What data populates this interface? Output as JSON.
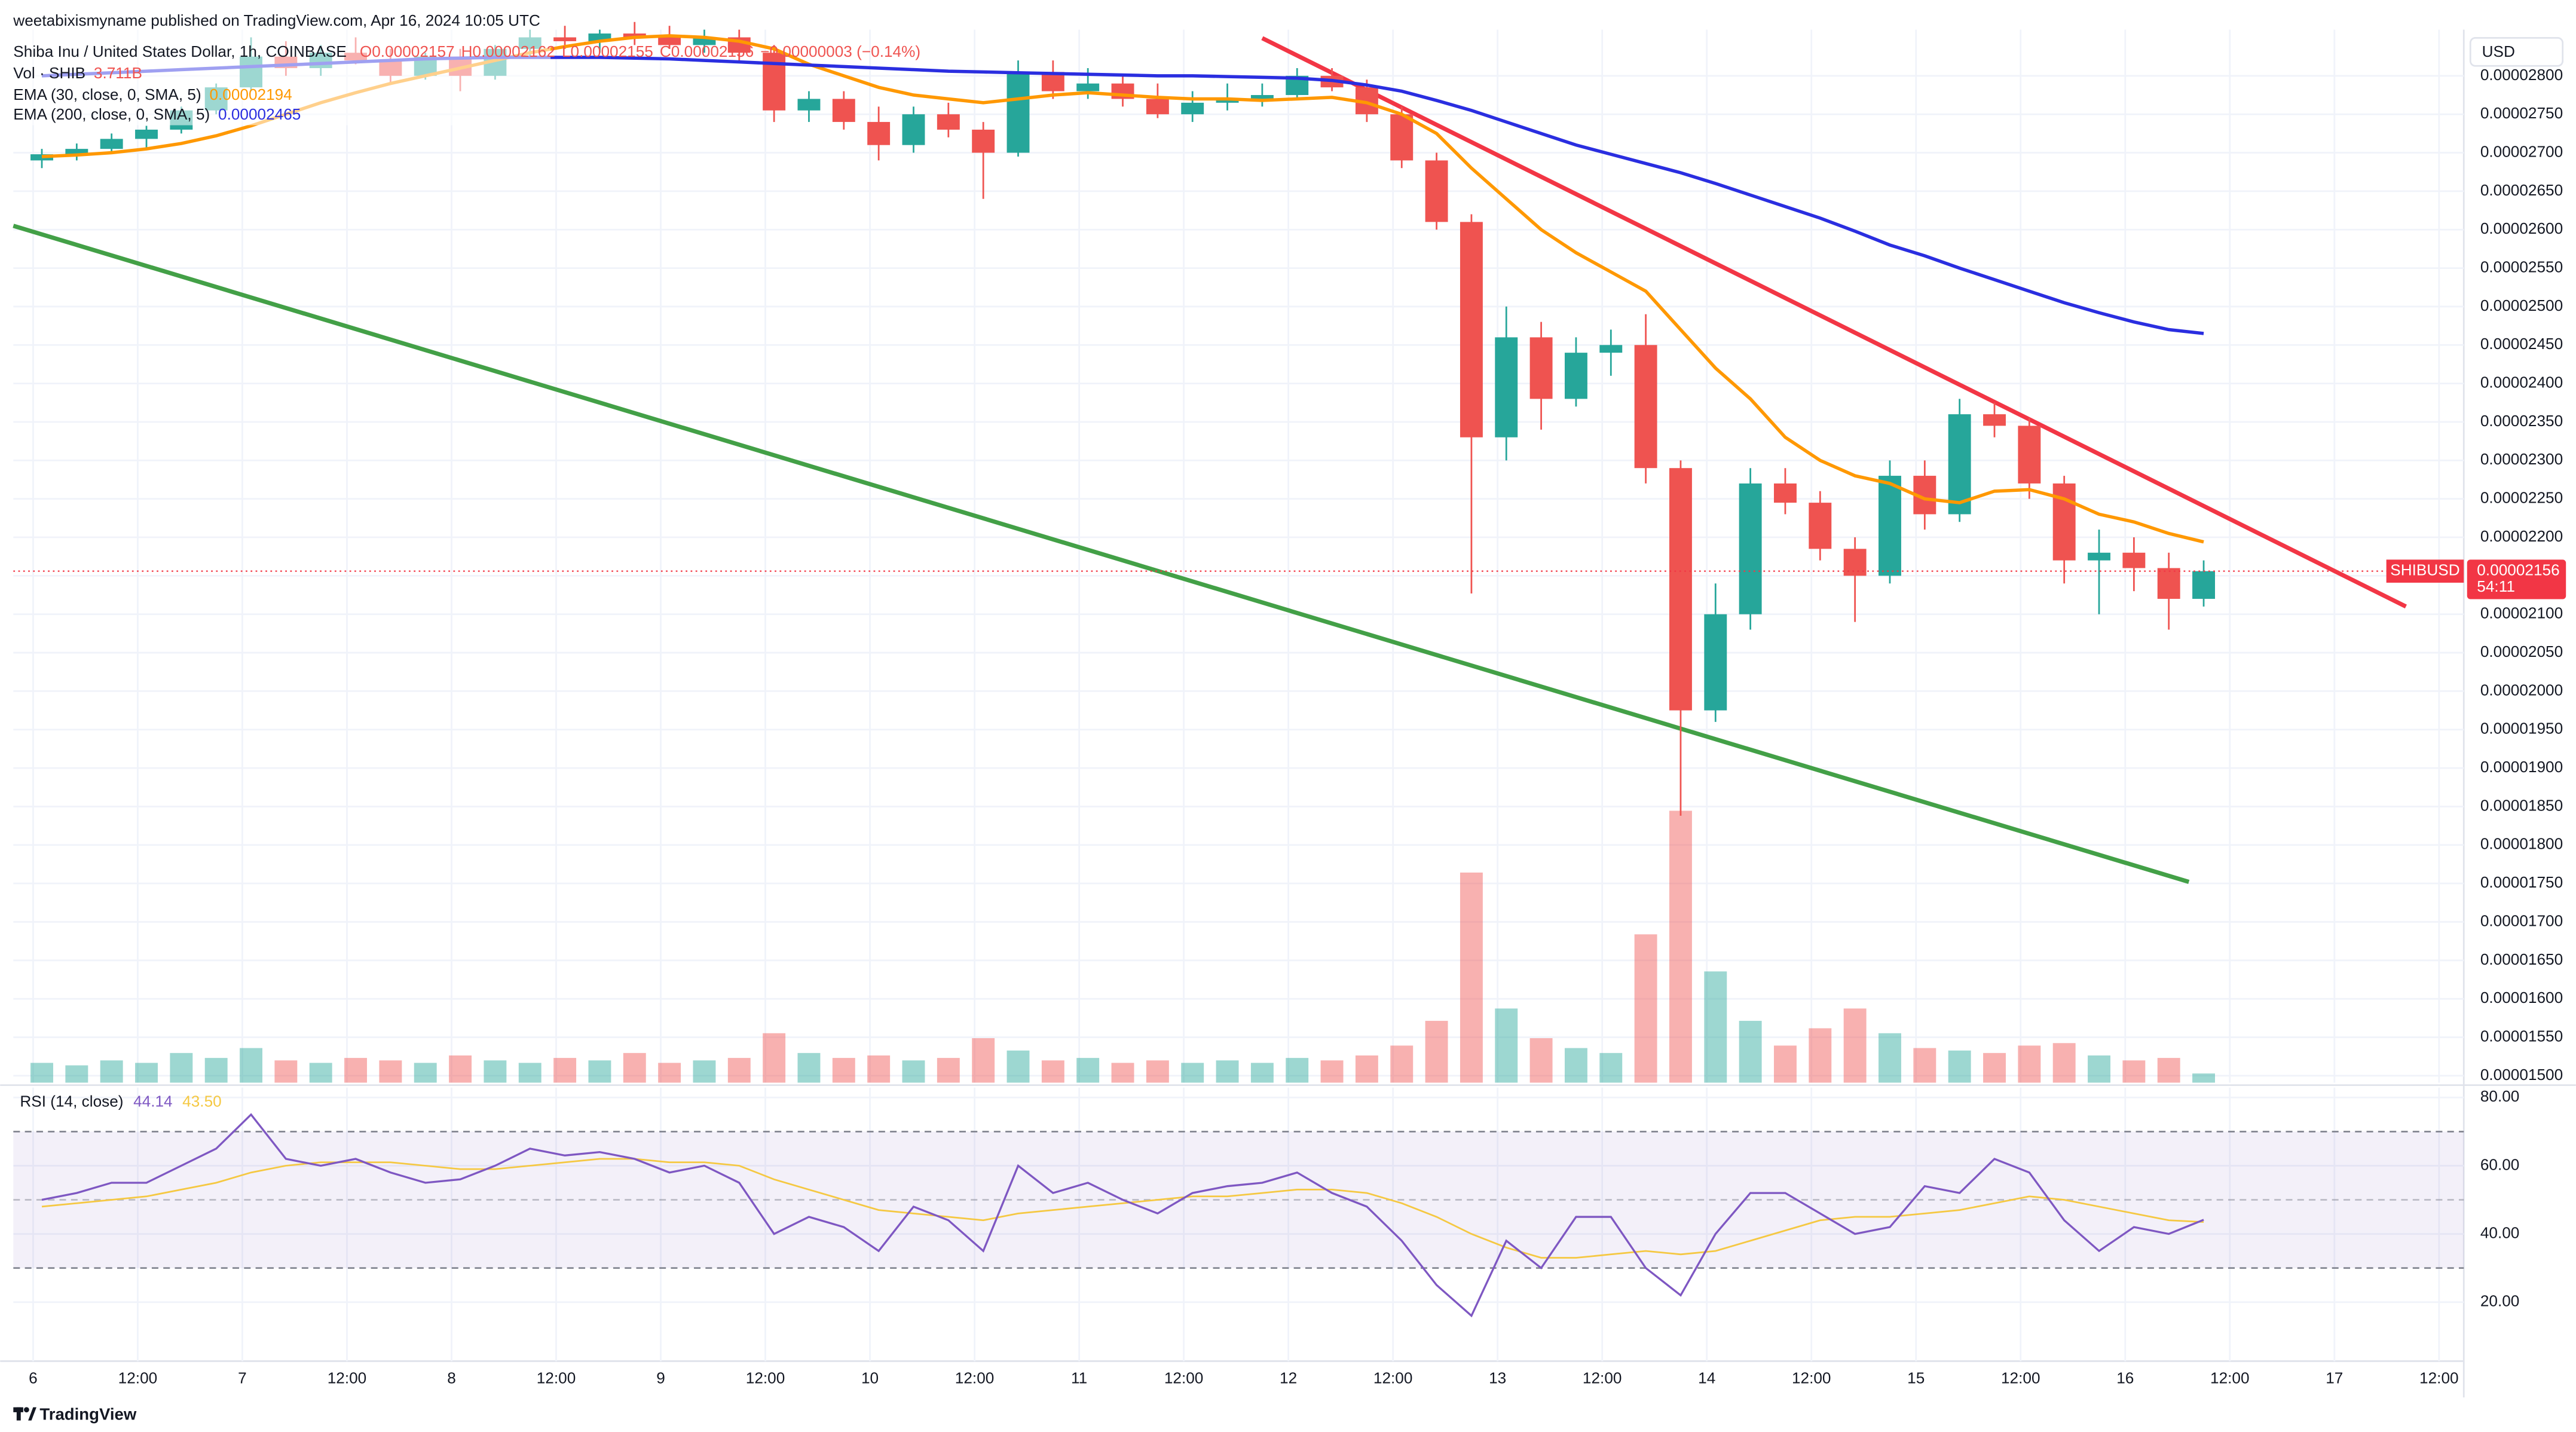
{
  "header": {
    "publisher": "weetabixismyname published on TradingView.com, Apr 16, 2024 10:05 UTC",
    "brand": "TradingView"
  },
  "chart_data": [
    {
      "type": "candlestick",
      "title": "Shiba Inu / United States Dollar, 1h, COINBASE",
      "ohlc_labels": [
        "O0.00002157",
        "H0.00002162",
        "L0.00002155",
        "C0.00002156",
        "−0.00000003 (−0.14%)"
      ],
      "axis_unit": "USD",
      "x": [
        1,
        5,
        9,
        13,
        17,
        21,
        25,
        29,
        33,
        37,
        41,
        45,
        49,
        53,
        57,
        61,
        65,
        69,
        73,
        77,
        81,
        85,
        89,
        93,
        97,
        101,
        105,
        109,
        113,
        117,
        121,
        125,
        129,
        133,
        137,
        141,
        145,
        149,
        153,
        157,
        161,
        165,
        169,
        173,
        177,
        181,
        185,
        189,
        193,
        197,
        201,
        205,
        209,
        213,
        217,
        221,
        225,
        229,
        233,
        237,
        241,
        245,
        249
      ],
      "open": [
        2.69e-05,
        2.698e-05,
        2.705e-05,
        2.718e-05,
        2.73e-05,
        2.755e-05,
        2.785e-05,
        2.825e-05,
        2.81e-05,
        2.83e-05,
        2.82e-05,
        2.8e-05,
        2.825e-05,
        2.8e-05,
        2.835e-05,
        2.85e-05,
        2.845e-05,
        2.855e-05,
        2.85e-05,
        2.84e-05,
        2.85e-05,
        2.83e-05,
        2.755e-05,
        2.77e-05,
        2.74e-05,
        2.71e-05,
        2.75e-05,
        2.73e-05,
        2.7e-05,
        2.805e-05,
        2.78e-05,
        2.79e-05,
        2.77e-05,
        2.75e-05,
        2.765e-05,
        2.77e-05,
        2.775e-05,
        2.8e-05,
        2.785e-05,
        2.75e-05,
        2.69e-05,
        2.61e-05,
        2.33e-05,
        2.46e-05,
        2.38e-05,
        2.44e-05,
        2.45e-05,
        2.29e-05,
        1.975e-05,
        2.1e-05,
        2.27e-05,
        2.245e-05,
        2.185e-05,
        2.15e-05,
        2.28e-05,
        2.23e-05,
        2.36e-05,
        2.345e-05,
        2.27e-05,
        2.17e-05,
        2.18e-05,
        2.16e-05,
        2.12e-05
      ],
      "high": [
        2.705e-05,
        2.712e-05,
        2.725e-05,
        2.735e-05,
        2.76e-05,
        2.79e-05,
        2.85e-05,
        2.845e-05,
        2.84e-05,
        2.85e-05,
        2.835e-05,
        2.83e-05,
        2.835e-05,
        2.84e-05,
        2.86e-05,
        2.865e-05,
        2.86e-05,
        2.87e-05,
        2.865e-05,
        2.86e-05,
        2.86e-05,
        2.84e-05,
        2.78e-05,
        2.78e-05,
        2.76e-05,
        2.76e-05,
        2.765e-05,
        2.74e-05,
        2.82e-05,
        2.82e-05,
        2.81e-05,
        2.8e-05,
        2.79e-05,
        2.78e-05,
        2.79e-05,
        2.79e-05,
        2.81e-05,
        2.81e-05,
        2.795e-05,
        2.76e-05,
        2.7e-05,
        2.62e-05,
        2.5e-05,
        2.48e-05,
        2.46e-05,
        2.47e-05,
        2.49e-05,
        2.3e-05,
        2.14e-05,
        2.29e-05,
        2.29e-05,
        2.26e-05,
        2.2e-05,
        2.3e-05,
        2.3e-05,
        2.38e-05,
        2.375e-05,
        2.355e-05,
        2.28e-05,
        2.21e-05,
        2.2e-05,
        2.18e-05,
        2.17e-05
      ],
      "low": [
        2.68e-05,
        2.69e-05,
        2.7e-05,
        2.705e-05,
        2.725e-05,
        2.75e-05,
        2.78e-05,
        2.8e-05,
        2.8e-05,
        2.815e-05,
        2.79e-05,
        2.795e-05,
        2.78e-05,
        2.795e-05,
        2.825e-05,
        2.835e-05,
        2.83e-05,
        2.84e-05,
        2.835e-05,
        2.83e-05,
        2.82e-05,
        2.74e-05,
        2.74e-05,
        2.73e-05,
        2.69e-05,
        2.7e-05,
        2.72e-05,
        2.64e-05,
        2.695e-05,
        2.77e-05,
        2.77e-05,
        2.76e-05,
        2.745e-05,
        2.74e-05,
        2.755e-05,
        2.76e-05,
        2.77e-05,
        2.78e-05,
        2.74e-05,
        2.68e-05,
        2.6e-05,
        2.127e-05,
        2.3e-05,
        2.34e-05,
        2.37e-05,
        2.41e-05,
        2.27e-05,
        1.838e-05,
        1.96e-05,
        2.08e-05,
        2.23e-05,
        2.17e-05,
        2.09e-05,
        2.14e-05,
        2.21e-05,
        2.22e-05,
        2.33e-05,
        2.25e-05,
        2.14e-05,
        2.1e-05,
        2.13e-05,
        2.08e-05,
        2.11e-05
      ],
      "close": [
        2.698e-05,
        2.705e-05,
        2.718e-05,
        2.73e-05,
        2.755e-05,
        2.785e-05,
        2.825e-05,
        2.81e-05,
        2.83e-05,
        2.82e-05,
        2.8e-05,
        2.825e-05,
        2.8e-05,
        2.835e-05,
        2.85e-05,
        2.845e-05,
        2.855e-05,
        2.85e-05,
        2.84e-05,
        2.85e-05,
        2.83e-05,
        2.755e-05,
        2.77e-05,
        2.74e-05,
        2.71e-05,
        2.75e-05,
        2.73e-05,
        2.7e-05,
        2.805e-05,
        2.78e-05,
        2.79e-05,
        2.77e-05,
        2.75e-05,
        2.765e-05,
        2.77e-05,
        2.775e-05,
        2.8e-05,
        2.785e-05,
        2.75e-05,
        2.69e-05,
        2.61e-05,
        2.33e-05,
        2.46e-05,
        2.38e-05,
        2.44e-05,
        2.45e-05,
        2.29e-05,
        1.975e-05,
        2.1e-05,
        2.27e-05,
        2.245e-05,
        2.185e-05,
        2.15e-05,
        2.28e-05,
        2.23e-05,
        2.36e-05,
        2.345e-05,
        2.27e-05,
        2.17e-05,
        2.18e-05,
        2.16e-05,
        2.12e-05,
        2.156e-05
      ],
      "up_color": "#26a69a",
      "down_color": "#ef5350",
      "volume": {
        "name": "Vol · SHIB",
        "value_label": "3.711B",
        "values": [
          8,
          7,
          9,
          8,
          12,
          10,
          14,
          9,
          8,
          10,
          9,
          8,
          11,
          9,
          8,
          10,
          9,
          12,
          8,
          9,
          10,
          20,
          12,
          10,
          11,
          9,
          10,
          18,
          13,
          9,
          10,
          8,
          9,
          8,
          9,
          8,
          10,
          9,
          11,
          15,
          25,
          85,
          30,
          18,
          14,
          12,
          60,
          110,
          45,
          25,
          15,
          22,
          30,
          20,
          14,
          13,
          12,
          15,
          16,
          11,
          9,
          10,
          3.711
        ]
      },
      "series": [
        {
          "name": "EMA (30, close, 0, SMA, 5)",
          "value_label": "0.00002194",
          "color": "#ff9800",
          "values": [
            2.695e-05,
            2.697e-05,
            2.7e-05,
            2.705e-05,
            2.712e-05,
            2.722e-05,
            2.735e-05,
            2.75e-05,
            2.765e-05,
            2.778e-05,
            2.79e-05,
            2.8e-05,
            2.81e-05,
            2.82e-05,
            2.83e-05,
            2.838e-05,
            2.845e-05,
            2.85e-05,
            2.852e-05,
            2.85e-05,
            2.845e-05,
            2.835e-05,
            2.815e-05,
            2.8e-05,
            2.785e-05,
            2.775e-05,
            2.77e-05,
            2.765e-05,
            2.77e-05,
            2.775e-05,
            2.778e-05,
            2.775e-05,
            2.772e-05,
            2.77e-05,
            2.77e-05,
            2.768e-05,
            2.77e-05,
            2.772e-05,
            2.765e-05,
            2.75e-05,
            2.725e-05,
            2.68e-05,
            2.64e-05,
            2.6e-05,
            2.57e-05,
            2.545e-05,
            2.52e-05,
            2.47e-05,
            2.42e-05,
            2.38e-05,
            2.33e-05,
            2.3e-05,
            2.28e-05,
            2.27e-05,
            2.25e-05,
            2.245e-05,
            2.26e-05,
            2.262e-05,
            2.25e-05,
            2.23e-05,
            2.22e-05,
            2.205e-05,
            2.194e-05
          ]
        },
        {
          "name": "EMA (200, close, 0, SMA, 5)",
          "value_label": "0.00002465",
          "color": "#2a2ee0",
          "values": [
            2.8e-05,
            2.802e-05,
            2.804e-05,
            2.806e-05,
            2.808e-05,
            2.81e-05,
            2.812e-05,
            2.814e-05,
            2.816e-05,
            2.818e-05,
            2.82e-05,
            2.822e-05,
            2.823e-05,
            2.824e-05,
            2.824e-05,
            2.824e-05,
            2.824e-05,
            2.823e-05,
            2.822e-05,
            2.82e-05,
            2.818e-05,
            2.816e-05,
            2.814e-05,
            2.812e-05,
            2.81e-05,
            2.808e-05,
            2.806e-05,
            2.805e-05,
            2.804e-05,
            2.803e-05,
            2.802e-05,
            2.801e-05,
            2.8e-05,
            2.8e-05,
            2.799e-05,
            2.798e-05,
            2.797e-05,
            2.794e-05,
            2.788e-05,
            2.78e-05,
            2.768e-05,
            2.755e-05,
            2.74e-05,
            2.725e-05,
            2.71e-05,
            2.698e-05,
            2.686e-05,
            2.674e-05,
            2.66e-05,
            2.645e-05,
            2.63e-05,
            2.615e-05,
            2.598e-05,
            2.58e-05,
            2.566e-05,
            2.55e-05,
            2.535e-05,
            2.52e-05,
            2.505e-05,
            2.492e-05,
            2.48e-05,
            2.47e-05,
            2.465e-05
          ]
        }
      ],
      "trendlines": [
        {
          "color": "#f23645",
          "x": [
            141.0,
            272.2
          ],
          "y": [
            2.849e-05,
            2.11e-05
          ]
        },
        {
          "color": "#43a047",
          "x": [
            -2.27,
            247.3
          ],
          "y": [
            2.605e-05,
            1.752e-05
          ]
        }
      ],
      "last_price": 2.156e-05,
      "last_price_symbol": "SHIBUSD",
      "countdown": "54:11",
      "last_price_color": "#f23645",
      "xlim": [
        -2.27,
        278.84
      ],
      "ylim": [
        1.491e-05,
        2.86e-05
      ],
      "yticks": [
        {
          "value": 1.5e-05,
          "label": "0.00001500"
        },
        {
          "value": 1.55e-05,
          "label": "0.00001550"
        },
        {
          "value": 1.6e-05,
          "label": "0.00001600"
        },
        {
          "value": 1.65e-05,
          "label": "0.00001650"
        },
        {
          "value": 1.7e-05,
          "label": "0.00001700"
        },
        {
          "value": 1.75e-05,
          "label": "0.00001750"
        },
        {
          "value": 1.8e-05,
          "label": "0.00001800"
        },
        {
          "value": 1.85e-05,
          "label": "0.00001850"
        },
        {
          "value": 1.9e-05,
          "label": "0.00001900"
        },
        {
          "value": 1.95e-05,
          "label": "0.00001950"
        },
        {
          "value": 2e-05,
          "label": "0.00002000"
        },
        {
          "value": 2.05e-05,
          "label": "0.00002050"
        },
        {
          "value": 2.1e-05,
          "label": "0.00002100"
        },
        {
          "value": 2.15e-05,
          "label": "0.00002150"
        },
        {
          "value": 2.2e-05,
          "label": "0.00002200"
        },
        {
          "value": 2.25e-05,
          "label": "0.00002250"
        },
        {
          "value": 2.3e-05,
          "label": "0.00002300"
        },
        {
          "value": 2.35e-05,
          "label": "0.00002350"
        },
        {
          "value": 2.4e-05,
          "label": "0.00002400"
        },
        {
          "value": 2.45e-05,
          "label": "0.00002450"
        },
        {
          "value": 2.5e-05,
          "label": "0.00002500"
        },
        {
          "value": 2.55e-05,
          "label": "0.00002550"
        },
        {
          "value": 2.6e-05,
          "label": "0.00002600"
        },
        {
          "value": 2.65e-05,
          "label": "0.00002650"
        },
        {
          "value": 2.7e-05,
          "label": "0.00002700"
        },
        {
          "value": 2.75e-05,
          "label": "0.00002750"
        },
        {
          "value": 2.8e-05,
          "label": "0.00002800"
        }
      ],
      "xticks": [
        {
          "value": 0,
          "label": "6"
        },
        {
          "value": 12,
          "label": "12:00"
        },
        {
          "value": 24,
          "label": "7"
        },
        {
          "value": 36,
          "label": "12:00"
        },
        {
          "value": 48,
          "label": "8"
        },
        {
          "value": 60,
          "label": "12:00"
        },
        {
          "value": 72,
          "label": "9"
        },
        {
          "value": 84,
          "label": "12:00"
        },
        {
          "value": 96,
          "label": "10"
        },
        {
          "value": 108,
          "label": "12:00"
        },
        {
          "value": 120,
          "label": "11"
        },
        {
          "value": 132,
          "label": "12:00"
        },
        {
          "value": 144,
          "label": "12"
        },
        {
          "value": 156,
          "label": "12:00"
        },
        {
          "value": 168,
          "label": "13"
        },
        {
          "value": 180,
          "label": "12:00"
        },
        {
          "value": 192,
          "label": "14"
        },
        {
          "value": 204,
          "label": "12:00"
        },
        {
          "value": 216,
          "label": "15"
        },
        {
          "value": 228,
          "label": "12:00"
        },
        {
          "value": 240,
          "label": "16"
        },
        {
          "value": 252,
          "label": "12:00"
        },
        {
          "value": 264,
          "label": "17"
        },
        {
          "value": 276,
          "label": "12:00"
        }
      ],
      "grid": true
    },
    {
      "type": "line",
      "title": "RSI (14, close)",
      "x": [
        1,
        5,
        9,
        13,
        17,
        21,
        25,
        29,
        33,
        37,
        41,
        45,
        49,
        53,
        57,
        61,
        65,
        69,
        73,
        77,
        81,
        85,
        89,
        93,
        97,
        101,
        105,
        109,
        113,
        117,
        121,
        125,
        129,
        133,
        137,
        141,
        145,
        149,
        153,
        157,
        161,
        165,
        169,
        173,
        177,
        181,
        185,
        189,
        193,
        197,
        201,
        205,
        209,
        213,
        217,
        221,
        225,
        229,
        233,
        237,
        241,
        245,
        249
      ],
      "series": [
        {
          "color": "#7e57c2",
          "value_label": "44.14",
          "values": [
            50,
            52,
            55,
            55,
            60,
            65,
            75,
            62,
            60,
            62,
            58,
            55,
            56,
            60,
            65,
            63,
            64,
            62,
            58,
            60,
            55,
            40,
            45,
            42,
            35,
            48,
            44,
            35,
            60,
            52,
            55,
            50,
            46,
            52,
            54,
            55,
            58,
            52,
            48,
            38,
            25,
            16,
            38,
            30,
            45,
            45,
            30,
            22,
            40,
            52,
            52,
            46,
            40,
            42,
            54,
            52,
            62,
            58,
            44,
            35,
            42,
            40,
            44.14
          ]
        },
        {
          "color": "#f5c842",
          "value_label": "43.50",
          "values": [
            48,
            49,
            50,
            51,
            53,
            55,
            58,
            60,
            61,
            61,
            61,
            60,
            59,
            59,
            60,
            61,
            62,
            62,
            61,
            61,
            60,
            56,
            53,
            50,
            47,
            46,
            45,
            44,
            46,
            47,
            48,
            49,
            50,
            51,
            51,
            52,
            53,
            53,
            52,
            49,
            45,
            40,
            36,
            33,
            33,
            34,
            35,
            34,
            35,
            38,
            41,
            44,
            45,
            45,
            46,
            47,
            49,
            51,
            50,
            48,
            46,
            44,
            43.5
          ]
        }
      ],
      "levels": [
        30,
        50,
        70
      ],
      "band_color": "#7e57c2",
      "ylim": [
        2.7,
        82.9
      ],
      "yticks": [
        {
          "value": 20,
          "label": "20.00"
        },
        {
          "value": 40,
          "label": "40.00"
        },
        {
          "value": 60,
          "label": "60.00"
        },
        {
          "value": 80,
          "label": "80.00"
        }
      ],
      "grid": true
    }
  ]
}
